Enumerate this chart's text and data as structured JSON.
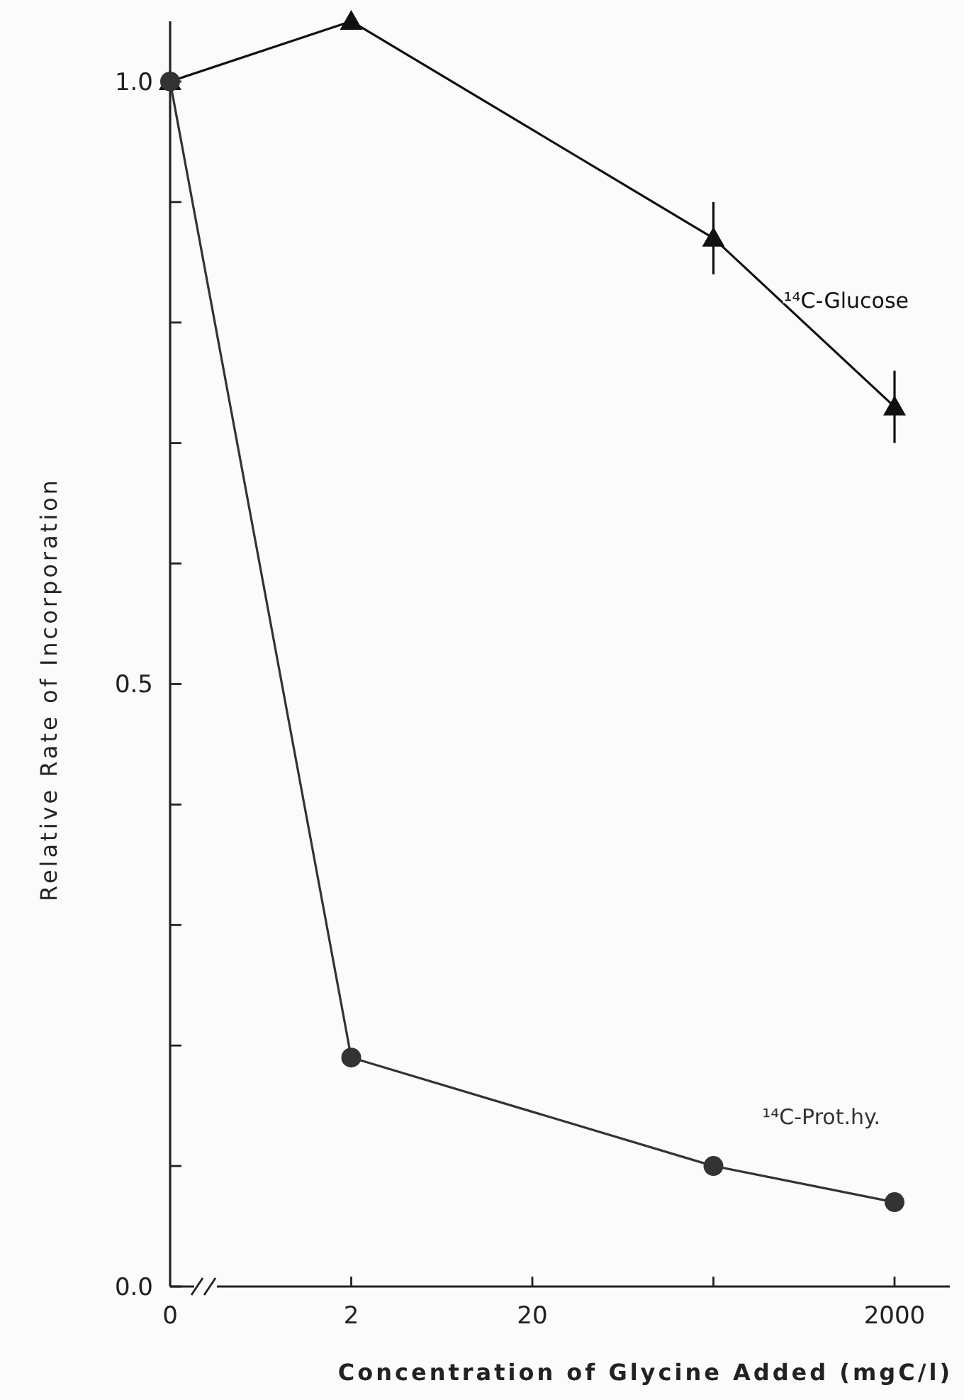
{
  "chart_data": {
    "type": "line",
    "xlabel": "Concentration of Glycine Added  (mgC/l)",
    "ylabel": "Relative Rate of Incorporation",
    "categories": [
      "0",
      "2",
      "20",
      null,
      "2000"
    ],
    "series": [
      {
        "name": "¹⁴C-Glucose",
        "color": "#111111",
        "marker": "triangle",
        "values": [
          1.0,
          1.05,
          null,
          0.87,
          0.73
        ],
        "errors": [
          null,
          null,
          null,
          0.03,
          0.03
        ]
      },
      {
        "name": "¹⁴C-Prot.hy.",
        "color": "#333333",
        "marker": "circle",
        "values": [
          1.0,
          0.19,
          null,
          0.1,
          0.07
        ]
      }
    ],
    "ylim": [
      0,
      1.05
    ],
    "yticks": [
      {
        "value": 0,
        "label": "0.0"
      },
      {
        "value": 0.1,
        "label": null
      },
      {
        "value": 0.2,
        "label": null
      },
      {
        "value": 0.3,
        "label": null
      },
      {
        "value": 0.4,
        "label": null
      },
      0.5,
      {
        "value": 0.6,
        "label": null
      },
      {
        "value": 0.7,
        "label": null
      },
      {
        "value": 0.8,
        "label": null
      },
      {
        "value": 0.9,
        "label": null
      },
      {
        "value": 1.0,
        "label": "1.0"
      }
    ],
    "line_style": "solid",
    "grid": false
  }
}
